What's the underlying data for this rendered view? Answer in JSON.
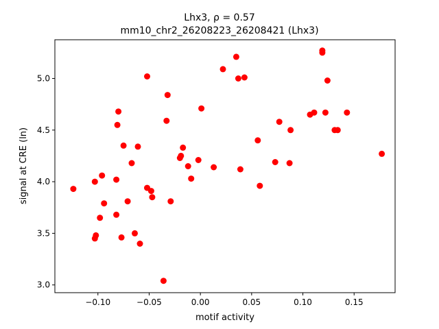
{
  "chart_data": {
    "type": "scatter",
    "title_line1": "Lhx3, ρ = 0.57",
    "title_line2": "mm10_chr2_26208223_26208421 (Lhx3)",
    "xlabel": "motif activity",
    "ylabel": "signal at CRE (ln)",
    "xlim": [
      -0.142,
      0.19
    ],
    "ylim": [
      2.925,
      5.375
    ],
    "x_ticks": [
      -0.1,
      -0.05,
      0.0,
      0.05,
      0.1,
      0.15
    ],
    "x_tick_labels": [
      "−0.10",
      "−0.05",
      "0.00",
      "0.05",
      "0.10",
      "0.15"
    ],
    "y_ticks": [
      3.0,
      3.5,
      4.0,
      4.5,
      5.0
    ],
    "y_tick_labels": [
      "3.0",
      "3.5",
      "4.0",
      "4.5",
      "5.0"
    ],
    "marker_color": "#ff0000",
    "grid": false,
    "points": [
      {
        "x": -0.124,
        "y": 3.93
      },
      {
        "x": -0.103,
        "y": 4.0
      },
      {
        "x": -0.103,
        "y": 3.45
      },
      {
        "x": -0.102,
        "y": 3.48
      },
      {
        "x": -0.098,
        "y": 3.65
      },
      {
        "x": -0.096,
        "y": 4.06
      },
      {
        "x": -0.094,
        "y": 3.79
      },
      {
        "x": -0.082,
        "y": 4.02
      },
      {
        "x": -0.082,
        "y": 3.68
      },
      {
        "x": -0.081,
        "y": 4.55
      },
      {
        "x": -0.08,
        "y": 4.68
      },
      {
        "x": -0.077,
        "y": 3.46
      },
      {
        "x": -0.075,
        "y": 4.35
      },
      {
        "x": -0.071,
        "y": 3.81
      },
      {
        "x": -0.067,
        "y": 4.18
      },
      {
        "x": -0.064,
        "y": 3.5
      },
      {
        "x": -0.061,
        "y": 4.34
      },
      {
        "x": -0.059,
        "y": 3.4
      },
      {
        "x": -0.052,
        "y": 5.02
      },
      {
        "x": -0.052,
        "y": 3.94
      },
      {
        "x": -0.048,
        "y": 3.91
      },
      {
        "x": -0.047,
        "y": 3.85
      },
      {
        "x": -0.036,
        "y": 3.04
      },
      {
        "x": -0.033,
        "y": 4.59
      },
      {
        "x": -0.032,
        "y": 4.84
      },
      {
        "x": -0.029,
        "y": 3.81
      },
      {
        "x": -0.02,
        "y": 4.23
      },
      {
        "x": -0.019,
        "y": 4.25
      },
      {
        "x": -0.017,
        "y": 4.33
      },
      {
        "x": -0.012,
        "y": 4.15
      },
      {
        "x": -0.009,
        "y": 4.03
      },
      {
        "x": -0.002,
        "y": 4.21
      },
      {
        "x": 0.001,
        "y": 4.71
      },
      {
        "x": 0.013,
        "y": 4.14
      },
      {
        "x": 0.022,
        "y": 5.09
      },
      {
        "x": 0.035,
        "y": 5.21
      },
      {
        "x": 0.037,
        "y": 5.0
      },
      {
        "x": 0.039,
        "y": 4.12
      },
      {
        "x": 0.043,
        "y": 5.01
      },
      {
        "x": 0.056,
        "y": 4.4
      },
      {
        "x": 0.058,
        "y": 3.96
      },
      {
        "x": 0.073,
        "y": 4.19
      },
      {
        "x": 0.077,
        "y": 4.58
      },
      {
        "x": 0.087,
        "y": 4.18
      },
      {
        "x": 0.088,
        "y": 4.5
      },
      {
        "x": 0.107,
        "y": 4.65
      },
      {
        "x": 0.111,
        "y": 4.67
      },
      {
        "x": 0.119,
        "y": 5.27
      },
      {
        "x": 0.119,
        "y": 5.25
      },
      {
        "x": 0.122,
        "y": 4.67
      },
      {
        "x": 0.124,
        "y": 4.98
      },
      {
        "x": 0.131,
        "y": 4.5
      },
      {
        "x": 0.134,
        "y": 4.5
      },
      {
        "x": 0.143,
        "y": 4.67
      },
      {
        "x": 0.177,
        "y": 4.27
      }
    ]
  }
}
